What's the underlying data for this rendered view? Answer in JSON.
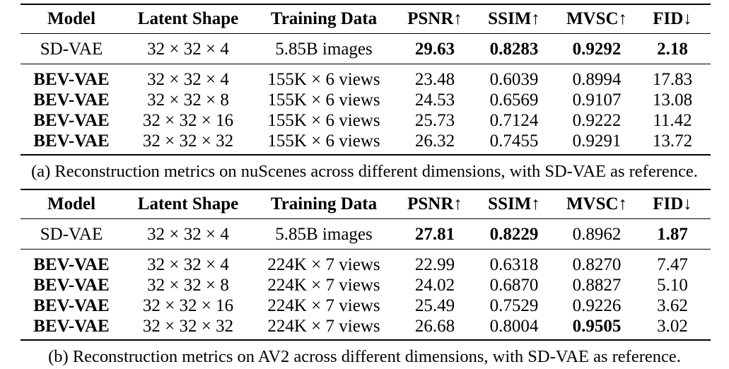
{
  "tables": [
    {
      "headers": [
        "Model",
        "Latent Shape",
        "Training Data",
        "PSNR↑",
        "SSIM↑",
        "MVSC↑",
        "FID↓"
      ],
      "reference_row": {
        "cells": [
          "SD-VAE",
          "32 × 32 × 4",
          "5.85B images",
          "29.63",
          "0.8283",
          "0.9292",
          "2.18"
        ],
        "bold": [
          false,
          false,
          false,
          true,
          true,
          true,
          true
        ]
      },
      "rows": [
        {
          "cells": [
            "BEV-VAE",
            "32 × 32 × 4",
            "155K × 6 views",
            "23.48",
            "0.6039",
            "0.8994",
            "17.83"
          ],
          "bold": [
            true,
            false,
            false,
            false,
            false,
            false,
            false
          ]
        },
        {
          "cells": [
            "BEV-VAE",
            "32 × 32 × 8",
            "155K × 6 views",
            "24.53",
            "0.6569",
            "0.9107",
            "13.08"
          ],
          "bold": [
            true,
            false,
            false,
            false,
            false,
            false,
            false
          ]
        },
        {
          "cells": [
            "BEV-VAE",
            "32 × 32 × 16",
            "155K × 6 views",
            "25.73",
            "0.7124",
            "0.9222",
            "11.42"
          ],
          "bold": [
            true,
            false,
            false,
            false,
            false,
            false,
            false
          ]
        },
        {
          "cells": [
            "BEV-VAE",
            "32 × 32 × 32",
            "155K × 6 views",
            "26.32",
            "0.7455",
            "0.9291",
            "13.72"
          ],
          "bold": [
            true,
            false,
            false,
            false,
            false,
            false,
            false
          ]
        }
      ],
      "caption": "(a) Reconstruction metrics on nuScenes across different dimensions, with SD-VAE as reference."
    },
    {
      "headers": [
        "Model",
        "Latent Shape",
        "Training Data",
        "PSNR↑",
        "SSIM↑",
        "MVSC↑",
        "FID↓"
      ],
      "reference_row": {
        "cells": [
          "SD-VAE",
          "32 × 32 × 4",
          "5.85B images",
          "27.81",
          "0.8229",
          "0.8962",
          "1.87"
        ],
        "bold": [
          false,
          false,
          false,
          true,
          true,
          false,
          true
        ]
      },
      "rows": [
        {
          "cells": [
            "BEV-VAE",
            "32 × 32 × 4",
            "224K × 7 views",
            "22.99",
            "0.6318",
            "0.8270",
            "7.47"
          ],
          "bold": [
            true,
            false,
            false,
            false,
            false,
            false,
            false
          ]
        },
        {
          "cells": [
            "BEV-VAE",
            "32 × 32 × 8",
            "224K × 7 views",
            "24.02",
            "0.6870",
            "0.8827",
            "5.10"
          ],
          "bold": [
            true,
            false,
            false,
            false,
            false,
            false,
            false
          ]
        },
        {
          "cells": [
            "BEV-VAE",
            "32 × 32 × 16",
            "224K × 7 views",
            "25.49",
            "0.7529",
            "0.9226",
            "3.62"
          ],
          "bold": [
            true,
            false,
            false,
            false,
            false,
            false,
            false
          ]
        },
        {
          "cells": [
            "BEV-VAE",
            "32 × 32 × 32",
            "224K × 7 views",
            "26.68",
            "0.8004",
            "0.9505",
            "3.02"
          ],
          "bold": [
            true,
            false,
            false,
            false,
            false,
            true,
            false
          ]
        }
      ],
      "caption": "(b) Reconstruction metrics on AV2 across different dimensions, with SD-VAE as reference."
    }
  ]
}
